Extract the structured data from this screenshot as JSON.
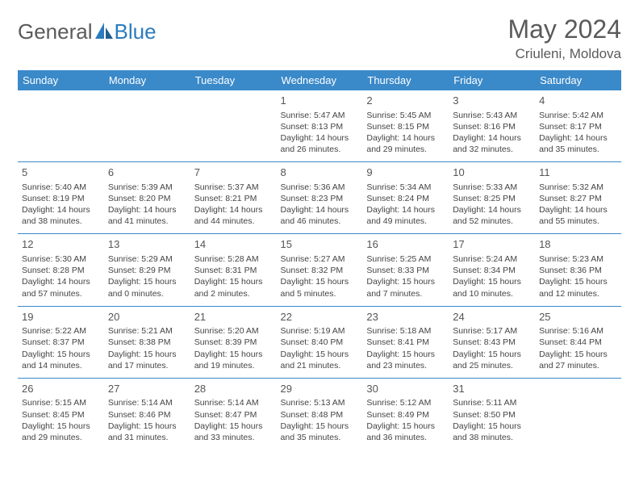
{
  "brand": {
    "name1": "General",
    "name2": "Blue",
    "text_color": "#5a5a5a",
    "accent_color": "#2b7bbf"
  },
  "title": "May 2024",
  "location": "Criuleni, Moldova",
  "header_bg": "#3a89c9",
  "header_fg": "#ffffff",
  "border_color": "#3a89c9",
  "weekdays": [
    "Sunday",
    "Monday",
    "Tuesday",
    "Wednesday",
    "Thursday",
    "Friday",
    "Saturday"
  ],
  "cells": [
    [
      null,
      null,
      null,
      {
        "n": "1",
        "sr": "5:47 AM",
        "ss": "8:13 PM",
        "dl": "14 hours and 26 minutes."
      },
      {
        "n": "2",
        "sr": "5:45 AM",
        "ss": "8:15 PM",
        "dl": "14 hours and 29 minutes."
      },
      {
        "n": "3",
        "sr": "5:43 AM",
        "ss": "8:16 PM",
        "dl": "14 hours and 32 minutes."
      },
      {
        "n": "4",
        "sr": "5:42 AM",
        "ss": "8:17 PM",
        "dl": "14 hours and 35 minutes."
      }
    ],
    [
      {
        "n": "5",
        "sr": "5:40 AM",
        "ss": "8:19 PM",
        "dl": "14 hours and 38 minutes."
      },
      {
        "n": "6",
        "sr": "5:39 AM",
        "ss": "8:20 PM",
        "dl": "14 hours and 41 minutes."
      },
      {
        "n": "7",
        "sr": "5:37 AM",
        "ss": "8:21 PM",
        "dl": "14 hours and 44 minutes."
      },
      {
        "n": "8",
        "sr": "5:36 AM",
        "ss": "8:23 PM",
        "dl": "14 hours and 46 minutes."
      },
      {
        "n": "9",
        "sr": "5:34 AM",
        "ss": "8:24 PM",
        "dl": "14 hours and 49 minutes."
      },
      {
        "n": "10",
        "sr": "5:33 AM",
        "ss": "8:25 PM",
        "dl": "14 hours and 52 minutes."
      },
      {
        "n": "11",
        "sr": "5:32 AM",
        "ss": "8:27 PM",
        "dl": "14 hours and 55 minutes."
      }
    ],
    [
      {
        "n": "12",
        "sr": "5:30 AM",
        "ss": "8:28 PM",
        "dl": "14 hours and 57 minutes."
      },
      {
        "n": "13",
        "sr": "5:29 AM",
        "ss": "8:29 PM",
        "dl": "15 hours and 0 minutes."
      },
      {
        "n": "14",
        "sr": "5:28 AM",
        "ss": "8:31 PM",
        "dl": "15 hours and 2 minutes."
      },
      {
        "n": "15",
        "sr": "5:27 AM",
        "ss": "8:32 PM",
        "dl": "15 hours and 5 minutes."
      },
      {
        "n": "16",
        "sr": "5:25 AM",
        "ss": "8:33 PM",
        "dl": "15 hours and 7 minutes."
      },
      {
        "n": "17",
        "sr": "5:24 AM",
        "ss": "8:34 PM",
        "dl": "15 hours and 10 minutes."
      },
      {
        "n": "18",
        "sr": "5:23 AM",
        "ss": "8:36 PM",
        "dl": "15 hours and 12 minutes."
      }
    ],
    [
      {
        "n": "19",
        "sr": "5:22 AM",
        "ss": "8:37 PM",
        "dl": "15 hours and 14 minutes."
      },
      {
        "n": "20",
        "sr": "5:21 AM",
        "ss": "8:38 PM",
        "dl": "15 hours and 17 minutes."
      },
      {
        "n": "21",
        "sr": "5:20 AM",
        "ss": "8:39 PM",
        "dl": "15 hours and 19 minutes."
      },
      {
        "n": "22",
        "sr": "5:19 AM",
        "ss": "8:40 PM",
        "dl": "15 hours and 21 minutes."
      },
      {
        "n": "23",
        "sr": "5:18 AM",
        "ss": "8:41 PM",
        "dl": "15 hours and 23 minutes."
      },
      {
        "n": "24",
        "sr": "5:17 AM",
        "ss": "8:43 PM",
        "dl": "15 hours and 25 minutes."
      },
      {
        "n": "25",
        "sr": "5:16 AM",
        "ss": "8:44 PM",
        "dl": "15 hours and 27 minutes."
      }
    ],
    [
      {
        "n": "26",
        "sr": "5:15 AM",
        "ss": "8:45 PM",
        "dl": "15 hours and 29 minutes."
      },
      {
        "n": "27",
        "sr": "5:14 AM",
        "ss": "8:46 PM",
        "dl": "15 hours and 31 minutes."
      },
      {
        "n": "28",
        "sr": "5:14 AM",
        "ss": "8:47 PM",
        "dl": "15 hours and 33 minutes."
      },
      {
        "n": "29",
        "sr": "5:13 AM",
        "ss": "8:48 PM",
        "dl": "15 hours and 35 minutes."
      },
      {
        "n": "30",
        "sr": "5:12 AM",
        "ss": "8:49 PM",
        "dl": "15 hours and 36 minutes."
      },
      {
        "n": "31",
        "sr": "5:11 AM",
        "ss": "8:50 PM",
        "dl": "15 hours and 38 minutes."
      },
      null
    ]
  ],
  "labels": {
    "sunrise": "Sunrise:",
    "sunset": "Sunset:",
    "daylight": "Daylight:"
  }
}
